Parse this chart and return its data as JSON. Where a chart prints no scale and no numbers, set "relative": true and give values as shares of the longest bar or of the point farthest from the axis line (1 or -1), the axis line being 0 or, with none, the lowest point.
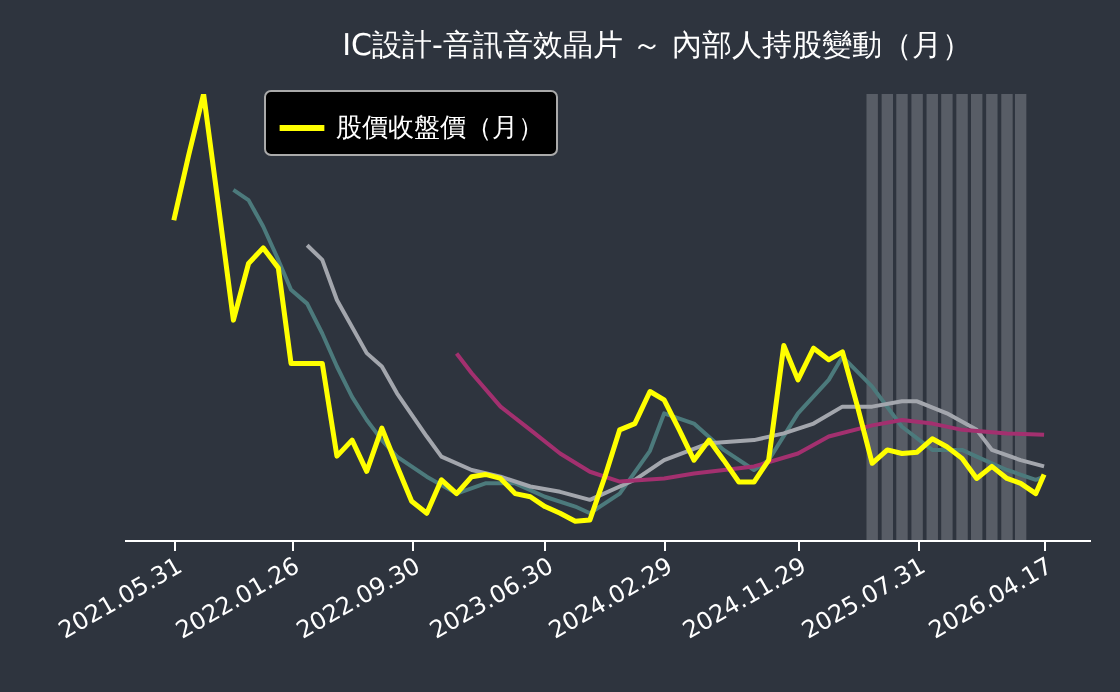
{
  "chart_data": {
    "type": "line",
    "title": "IC設計-音訊音效晶片 ～ 內部人持股變動（月）",
    "relative": true,
    "grid": false,
    "legend": "top left",
    "x": [
      "2021-05-31",
      "2021-06-30",
      "2021-07-31",
      "2021-08-31",
      "2021-09-30",
      "2021-10-31",
      "2021-11-30",
      "2021-12-31",
      "2022-01-26",
      "2022-02-28",
      "2022-03-31",
      "2022-04-30",
      "2022-05-31",
      "2022-06-30",
      "2022-07-31",
      "2022-08-31",
      "2022-09-30",
      "2022-10-31",
      "2022-11-30",
      "2022-12-31",
      "2023-01-31",
      "2023-02-28",
      "2023-03-31",
      "2023-04-30",
      "2023-05-31",
      "2023-06-30",
      "2023-07-31",
      "2023-08-31",
      "2023-09-30",
      "2023-10-31",
      "2023-11-30",
      "2023-12-31",
      "2024-01-31",
      "2024-02-29",
      "2024-03-31",
      "2024-04-30",
      "2024-05-31",
      "2024-06-30",
      "2024-07-31",
      "2024-08-31",
      "2024-09-30",
      "2024-10-31",
      "2024-11-29",
      "2024-12-31",
      "2025-01-31",
      "2025-02-28",
      "2025-03-31",
      "2025-04-30",
      "2025-05-31",
      "2025-06-30",
      "2025-07-31",
      "2025-08-31",
      "2025-09-30",
      "2025-10-31",
      "2025-11-30",
      "2025-12-31",
      "2026-01-31",
      "2026-02-28",
      "2026-03-31",
      "2026-04-17"
    ],
    "xlim": [
      "2021-02-18",
      "2026-07-20"
    ],
    "xticks": [
      {
        "value": "2021-05-31",
        "label": "2021.05.31"
      },
      {
        "value": "2022-01-26",
        "label": "2022.01.26"
      },
      {
        "value": "2022-09-30",
        "label": "2022.09.30"
      },
      {
        "value": "2023-06-30",
        "label": "2023.06.30"
      },
      {
        "value": "2024-02-29",
        "label": "2024.02.29"
      },
      {
        "value": "2024-11-29",
        "label": "2024.11.29"
      },
      {
        "value": "2025-07-31",
        "label": "2025.07.31"
      },
      {
        "value": "2026-04-17",
        "label": "2026.04.17"
      }
    ],
    "series": [
      {
        "type": "bar",
        "color": "#5d626a",
        "x": [
          "2025-04-30",
          "2025-05-31",
          "2025-06-30",
          "2025-07-31",
          "2025-08-31",
          "2025-09-30",
          "2025-10-31",
          "2025-11-30",
          "2025-12-31",
          "2026-01-31",
          "2026-02-28"
        ],
        "values": [
          1,
          1,
          1,
          1,
          1,
          1,
          1,
          1,
          1,
          1,
          1
        ]
      },
      {
        "color": "#4c7a7c",
        "x": [
          "2021-09-30",
          "2021-10-31",
          "2021-11-30",
          "2021-12-31",
          "2022-01-26",
          "2022-02-28",
          "2022-03-31",
          "2022-04-30",
          "2022-05-31",
          "2022-06-30",
          "2022-07-31",
          "2022-08-31",
          "2022-10-31",
          "2022-12-31",
          "2023-02-28",
          "2023-04-30",
          "2023-06-30",
          "2023-08-31",
          "2023-09-30",
          "2023-11-30",
          "2024-01-31",
          "2024-02-29",
          "2024-04-30",
          "2024-06-30",
          "2024-08-31",
          "2024-09-30",
          "2024-11-29",
          "2025-01-31",
          "2025-02-28",
          "2025-04-30",
          "2025-06-30",
          "2025-08-31",
          "2025-10-31",
          "2025-11-30",
          "2026-01-31",
          "2026-03-31",
          "2026-04-17"
        ],
        "values": [
          0.785,
          0.762,
          0.703,
          0.628,
          0.561,
          0.53,
          0.463,
          0.389,
          0.321,
          0.269,
          0.224,
          0.187,
          0.142,
          0.104,
          0.127,
          0.127,
          0.097,
          0.075,
          0.06,
          0.104,
          0.2,
          0.284,
          0.261,
          0.202,
          0.157,
          0.179,
          0.284,
          0.359,
          0.411,
          0.344,
          0.254,
          0.202,
          0.202,
          0.187,
          0.157,
          0.135,
          0.142
        ]
      },
      {
        "color": "#a3a6ad",
        "x": [
          "2022-02-28",
          "2022-03-31",
          "2022-04-30",
          "2022-06-30",
          "2022-07-31",
          "2022-08-31",
          "2022-10-31",
          "2022-11-30",
          "2023-01-31",
          "2023-03-31",
          "2023-05-31",
          "2023-07-31",
          "2023-09-30",
          "2023-12-31",
          "2024-02-29",
          "2024-05-31",
          "2024-08-31",
          "2024-10-31",
          "2024-12-31",
          "2025-02-28",
          "2025-04-30",
          "2025-06-30",
          "2025-07-31",
          "2025-09-30",
          "2025-11-30",
          "2025-12-31",
          "2026-02-28",
          "2026-04-17"
        ],
        "values": [
          0.661,
          0.628,
          0.538,
          0.419,
          0.389,
          0.329,
          0.232,
          0.187,
          0.157,
          0.142,
          0.12,
          0.108,
          0.09,
          0.135,
          0.179,
          0.217,
          0.224,
          0.239,
          0.261,
          0.299,
          0.299,
          0.311,
          0.311,
          0.284,
          0.247,
          0.202,
          0.179,
          0.165
        ]
      },
      {
        "color": "#a3306f",
        "x": [
          "2022-12-31",
          "2023-01-31",
          "2023-03-31",
          "2023-05-31",
          "2023-07-31",
          "2023-09-30",
          "2023-11-30",
          "2024-02-29",
          "2024-04-30",
          "2024-08-31",
          "2024-11-29",
          "2025-01-31",
          "2025-04-30",
          "2025-06-30",
          "2025-08-31",
          "2025-10-31",
          "2026-01-31",
          "2026-04-17"
        ],
        "values": [
          0.418,
          0.374,
          0.299,
          0.247,
          0.194,
          0.153,
          0.131,
          0.138,
          0.149,
          0.165,
          0.194,
          0.232,
          0.257,
          0.269,
          0.261,
          0.247,
          0.239,
          0.236
        ]
      },
      {
        "name": "股價收盤價（月）",
        "color": "#ffff00",
        "values": [
          0.717,
          0.861,
          1.0,
          0.744,
          0.493,
          0.62,
          0.655,
          0.61,
          0.396,
          0.396,
          0.396,
          0.188,
          0.224,
          0.154,
          0.251,
          0.166,
          0.087,
          0.06,
          0.135,
          0.104,
          0.142,
          0.147,
          0.138,
          0.104,
          0.097,
          0.075,
          0.06,
          0.042,
          0.045,
          0.143,
          0.247,
          0.261,
          0.333,
          0.314,
          0.247,
          0.179,
          0.224,
          0.179,
          0.13,
          0.13,
          0.179,
          0.436,
          0.359,
          0.43,
          0.404,
          0.422,
          0.299,
          0.172,
          0.202,
          0.194,
          0.197,
          0.227,
          0.209,
          0.183,
          0.138,
          0.165,
          0.138,
          0.127,
          0.104,
          0.147
        ]
      }
    ]
  }
}
